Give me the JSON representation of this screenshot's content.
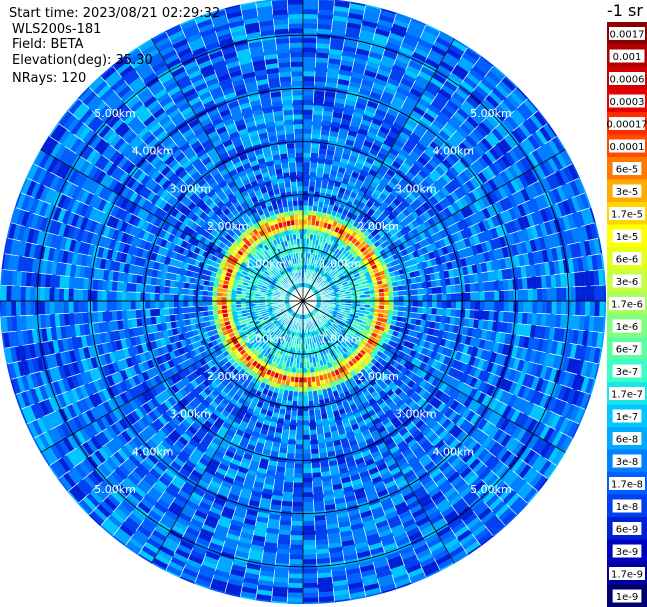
{
  "header": {
    "start_time": "Start time: 2023/08/21 02:29:32",
    "instrument": "WLS200s-181",
    "field": "Field: BETA",
    "elevation": "Elevation(deg): 35.30",
    "nrays": "NRays: 120"
  },
  "colorbar": {
    "unit": "-1 sr",
    "labels": [
      "0.0017",
      "0.001",
      "0.0006",
      "0.0003",
      "0.00017",
      "0.0001",
      "6e-5",
      "3e-5",
      "1.7e-5",
      "1e-5",
      "6e-6",
      "3e-6",
      "1.7e-6",
      "1e-6",
      "6e-7",
      "3e-7",
      "1.7e-7",
      "1e-7",
      "6e-8",
      "3e-8",
      "1.7e-8",
      "1e-8",
      "6e-9",
      "3e-9",
      "1.7e-9",
      "1e-9"
    ],
    "colors": [
      "#8b0000",
      "#b00000",
      "#d00000",
      "#e80000",
      "#ff2a00",
      "#ff4a00",
      "#ff7a00",
      "#ffaa00",
      "#ffd400",
      "#ffff00",
      "#e6ff1a",
      "#c8ff40",
      "#a8ff60",
      "#80ff80",
      "#5dffa0",
      "#3affc8",
      "#1ae6e6",
      "#00c8ff",
      "#00a8ff",
      "#0080ff",
      "#0060ff",
      "#0040f0",
      "#0020d8",
      "#0000c0",
      "#00009a",
      "#000070"
    ]
  },
  "chart_data": {
    "type": "heatmap",
    "projection": "polar (PPI scan)",
    "field": "BETA",
    "elevation_deg": 35.3,
    "nrays": 120,
    "range_rings_km": [
      1.0,
      2.0,
      3.0,
      4.0,
      5.0
    ],
    "range_labels": [
      "1.00km",
      "2.00km",
      "3.00km",
      "4.00km",
      "5.00km"
    ],
    "max_range_km": 5.7,
    "colorbar_unit": "-1 sr",
    "color_scale": "log",
    "value_range": [
      1e-09,
      0.0017
    ],
    "features": {
      "inner_region_km": [
        0.0,
        1.3
      ],
      "inner_value_approx": 1.7e-07,
      "aerosol_ring_km": [
        1.3,
        1.85
      ],
      "aerosol_ring_peak_value_approx": 0.0003,
      "outer_background_value_approx": 3e-08
    },
    "grid": true
  }
}
